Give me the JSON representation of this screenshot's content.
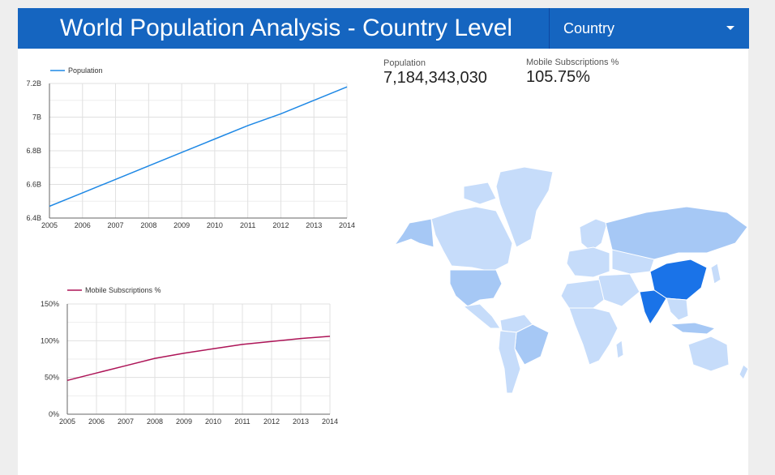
{
  "report": {
    "title": "World Population Analysis - Country Level",
    "filter": {
      "label": "Country",
      "icon": "dropdown-arrow-icon"
    }
  },
  "scorecards": [
    {
      "label": "Population",
      "value": "7,184,343,030"
    },
    {
      "label": "Mobile Subscriptions %",
      "value": "105.75%"
    }
  ],
  "colors": {
    "header": "#1565c0",
    "population_line": "#1e88e5",
    "mobile_line": "#ad1457",
    "map_land_light": "#c6dcfa",
    "map_land_mid": "#a6c8f5",
    "map_land_strong": "#1a73e8"
  },
  "chart_data": [
    {
      "type": "line",
      "title": "",
      "xlabel": "",
      "ylabel": "",
      "x": [
        "2005",
        "2006",
        "2007",
        "2008",
        "2009",
        "2010",
        "2011",
        "2012",
        "2013",
        "2014"
      ],
      "series": [
        {
          "name": "Population",
          "values": [
            6.47,
            6.55,
            6.63,
            6.71,
            6.79,
            6.87,
            6.95,
            7.02,
            7.1,
            7.18
          ]
        }
      ],
      "ylim": [
        6.4,
        7.2
      ],
      "yticks": [
        6.4,
        6.6,
        6.8,
        7.0,
        7.2
      ],
      "ytick_labels": [
        "6.4B",
        "6.6B",
        "6.8B",
        "7B",
        "7.2B"
      ],
      "grid": true,
      "legend": "top-left"
    },
    {
      "type": "line",
      "title": "",
      "xlabel": "",
      "ylabel": "",
      "x": [
        "2005",
        "2006",
        "2007",
        "2008",
        "2009",
        "2010",
        "2011",
        "2012",
        "2013",
        "2014"
      ],
      "series": [
        {
          "name": "Mobile Subscriptions %",
          "values": [
            46,
            56,
            66,
            76,
            83,
            89,
            95,
            99,
            103,
            106
          ]
        }
      ],
      "ylim": [
        0,
        150
      ],
      "yticks": [
        0,
        50,
        100,
        150
      ],
      "ytick_labels": [
        "0%",
        "50%",
        "100%",
        "150%"
      ],
      "grid": true,
      "legend": "top-left"
    },
    {
      "type": "heatmap",
      "title": "",
      "map": "world",
      "metric": "Population",
      "highlighted_regions": [
        {
          "name": "China",
          "level": "high"
        },
        {
          "name": "India",
          "level": "high"
        },
        {
          "name": "United States",
          "level": "medium"
        },
        {
          "name": "Russia",
          "level": "low-medium"
        },
        {
          "name": "Brazil",
          "level": "low-medium"
        },
        {
          "name": "Indonesia",
          "level": "low-medium"
        }
      ]
    }
  ]
}
